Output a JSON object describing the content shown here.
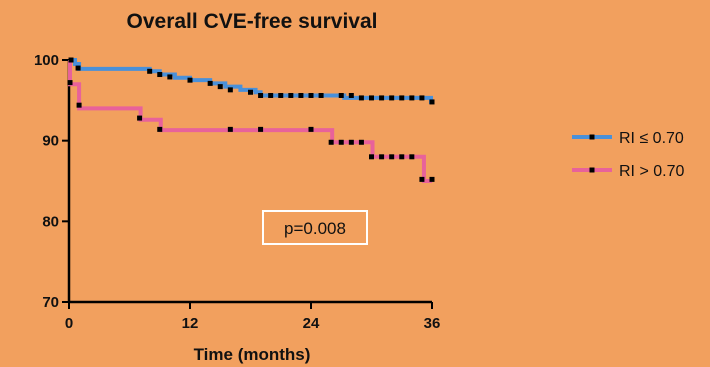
{
  "chart_data": {
    "type": "line",
    "title": "Overall CVE-free survival",
    "xlabel": "Time (months)",
    "ylabel": "",
    "xlim": [
      0,
      36
    ],
    "ylim": [
      70,
      100
    ],
    "xticks": [
      0,
      12,
      24,
      36
    ],
    "yticks": [
      70,
      80,
      90,
      100
    ],
    "grid": false,
    "legend_position": "right",
    "series": [
      {
        "name": "RI ≤ 0.70",
        "color": "#4A90D9",
        "steps": [
          [
            0,
            100
          ],
          [
            0.6,
            99.5
          ],
          [
            1,
            98.9
          ],
          [
            8,
            98.6
          ],
          [
            9,
            98.2
          ],
          [
            10.5,
            97.8
          ],
          [
            12,
            97.5
          ],
          [
            14,
            97.1
          ],
          [
            15.5,
            96.7
          ],
          [
            17,
            96.3
          ],
          [
            18.5,
            96.0
          ],
          [
            19,
            95.6
          ],
          [
            27,
            95.6
          ],
          [
            27.3,
            95.3
          ],
          [
            35.5,
            95.3
          ],
          [
            35.9,
            94.8
          ],
          [
            36,
            94.8
          ]
        ],
        "censored": [
          [
            0.2,
            100
          ],
          [
            0.9,
            99.0
          ],
          [
            8,
            98.6
          ],
          [
            9,
            98.2
          ],
          [
            10,
            97.9
          ],
          [
            12,
            97.5
          ],
          [
            14,
            97.1
          ],
          [
            15,
            96.7
          ],
          [
            16,
            96.3
          ],
          [
            18,
            96.0
          ],
          [
            19,
            95.6
          ],
          [
            20,
            95.6
          ],
          [
            21,
            95.6
          ],
          [
            22,
            95.6
          ],
          [
            23,
            95.6
          ],
          [
            24,
            95.6
          ],
          [
            25,
            95.6
          ],
          [
            27,
            95.6
          ],
          [
            28,
            95.6
          ],
          [
            29,
            95.3
          ],
          [
            30,
            95.3
          ],
          [
            31,
            95.3
          ],
          [
            32,
            95.3
          ],
          [
            33,
            95.3
          ],
          [
            34,
            95.3
          ],
          [
            35,
            95.3
          ],
          [
            36,
            94.8
          ]
        ]
      },
      {
        "name": "RI > 0.70",
        "color": "#E8629A",
        "steps": [
          [
            0,
            100
          ],
          [
            0.1,
            97.0
          ],
          [
            0.8,
            97.0
          ],
          [
            1,
            94.0
          ],
          [
            7,
            94.0
          ],
          [
            7.1,
            92.6
          ],
          [
            9,
            92.6
          ],
          [
            9.1,
            91.3
          ],
          [
            26,
            91.3
          ],
          [
            26.1,
            89.8
          ],
          [
            30,
            89.8
          ],
          [
            30.1,
            88.0
          ],
          [
            35,
            88.0
          ],
          [
            35.2,
            85.0
          ],
          [
            36,
            85.0
          ]
        ],
        "censored": [
          [
            0.1,
            97.2
          ],
          [
            1,
            94.4
          ],
          [
            7,
            92.8
          ],
          [
            9,
            91.4
          ],
          [
            16,
            91.4
          ],
          [
            19,
            91.4
          ],
          [
            24,
            91.4
          ],
          [
            26,
            89.8
          ],
          [
            27,
            89.8
          ],
          [
            28,
            89.8
          ],
          [
            29,
            89.8
          ],
          [
            30,
            88.0
          ],
          [
            31,
            88.0
          ],
          [
            32,
            88.0
          ],
          [
            33,
            88.0
          ],
          [
            34,
            88.0
          ],
          [
            35,
            85.2
          ],
          [
            36,
            85.2
          ]
        ]
      }
    ],
    "annotation": "p=0.008"
  }
}
